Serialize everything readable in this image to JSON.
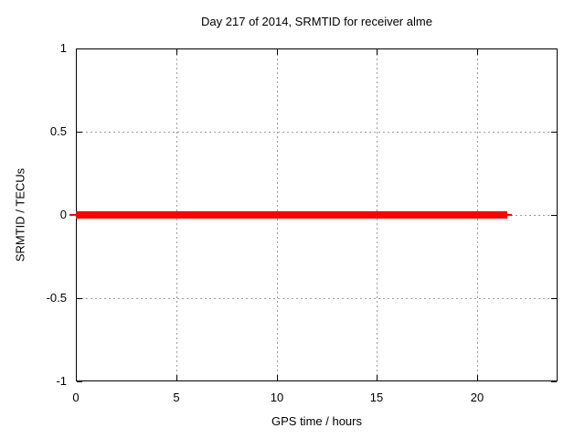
{
  "chart_data": {
    "type": "line",
    "title": "Day 217 of 2014, SRMTID for receiver alme",
    "xlabel": "GPS time / hours",
    "ylabel": "SRMTID / TECUs",
    "xlim": [
      0,
      24
    ],
    "ylim": [
      -1,
      1
    ],
    "xticks": [
      0,
      5,
      10,
      15,
      20
    ],
    "yticks": [
      -1,
      -0.5,
      0,
      0.5,
      1
    ],
    "grid": true,
    "legend": "none",
    "background_color": "#ffffff",
    "border_color": "#000000",
    "grid_color": "#9c9c9c",
    "series": [
      {
        "name": "SRMTID",
        "color": "#ff0000",
        "y_value": 0,
        "x_start": 0,
        "x_end": 21.5,
        "segments": [
          {
            "y": 0,
            "x_start": -0.3,
            "x_end": 21.72,
            "thickness_px": 2
          },
          {
            "y": 0,
            "x_start": 0,
            "x_end": 21.5,
            "thickness_px": 8
          }
        ]
      }
    ]
  }
}
